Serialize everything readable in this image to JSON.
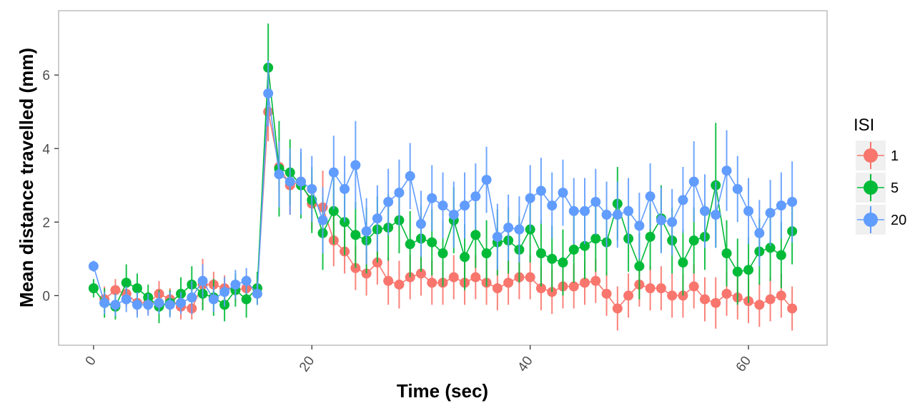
{
  "chart_data": {
    "type": "line",
    "xlabel": "Time (sec)",
    "ylabel": "Mean distance travelled (mm)",
    "xlim": [
      -3.2,
      67.2
    ],
    "ylim": [
      -1.35,
      7.75
    ],
    "x_ticks": [
      0,
      20,
      40,
      60
    ],
    "x_tick_labels": [
      "0",
      "20",
      "40",
      "60"
    ],
    "y_ticks": [
      0,
      2,
      4,
      6
    ],
    "y_tick_labels": [
      "0",
      "2",
      "4",
      "6"
    ],
    "grid": false,
    "legend": {
      "title": "ISI",
      "position": "right"
    },
    "x": [
      0,
      1,
      2,
      3,
      4,
      5,
      6,
      7,
      8,
      9,
      10,
      11,
      12,
      13,
      14,
      15,
      16,
      17,
      18,
      19,
      20,
      21,
      22,
      23,
      24,
      25,
      26,
      27,
      28,
      29,
      30,
      31,
      32,
      33,
      34,
      35,
      36,
      37,
      38,
      39,
      40,
      41,
      42,
      43,
      44,
      45,
      46,
      47,
      48,
      49,
      50,
      51,
      52,
      53,
      54,
      55,
      56,
      57,
      58,
      59,
      60,
      61,
      62,
      63,
      64
    ],
    "series": [
      {
        "name": "1",
        "color": "#F8766D",
        "start_x": 1,
        "values": [
          -0.3,
          -0.1,
          0.15,
          0.05,
          -0.2,
          -0.2,
          0.05,
          -0.1,
          -0.3,
          -0.35,
          0.3,
          0.3,
          0.2,
          0.15,
          0.2,
          0.2,
          5.0,
          3.5,
          3.0,
          3.1,
          2.5,
          2.4,
          1.5,
          1.2,
          0.75,
          0.6,
          0.9,
          0.4,
          0.3,
          0.5,
          0.6,
          0.35,
          0.35,
          0.5,
          0.35,
          0.5,
          0.35,
          0.2,
          0.35,
          0.5,
          0.5,
          0.2,
          0.1,
          0.25,
          0.25,
          0.35,
          0.4,
          0.05,
          -0.35,
          0.0,
          0.3,
          0.2,
          0.2,
          0.0,
          0.0,
          0.25,
          -0.1,
          -0.2,
          0.05,
          -0.05,
          -0.15,
          -0.25,
          -0.1,
          0.0,
          -0.35
        ],
        "errors": [
          0.3,
          0.35,
          0.3,
          0.35,
          0.3,
          0.3,
          0.35,
          0.3,
          0.35,
          0.3,
          0.7,
          0.35,
          0.35,
          0.3,
          0.35,
          0.3,
          0.8,
          0.7,
          0.8,
          0.7,
          0.7,
          1.0,
          0.7,
          0.6,
          0.6,
          0.6,
          0.6,
          0.65,
          0.65,
          0.6,
          0.6,
          0.6,
          0.6,
          0.6,
          0.6,
          0.6,
          0.6,
          0.6,
          0.6,
          0.6,
          0.6,
          0.6,
          0.6,
          0.6,
          0.6,
          0.6,
          0.6,
          0.6,
          0.6,
          0.6,
          0.6,
          0.6,
          0.6,
          0.6,
          0.6,
          0.6,
          0.6,
          0.7,
          0.6,
          0.6,
          0.6,
          0.6,
          0.6,
          0.6,
          0.6
        ]
      },
      {
        "name": "5",
        "color": "#00BA38",
        "start_x": 0,
        "values": [
          0.2,
          -0.2,
          -0.3,
          0.35,
          0.2,
          -0.05,
          -0.3,
          -0.2,
          0.05,
          0.3,
          0.05,
          -0.05,
          -0.25,
          0.15,
          -0.1,
          0.2,
          6.2,
          3.45,
          3.35,
          3.0,
          2.6,
          1.7,
          2.3,
          2.0,
          1.65,
          1.5,
          1.8,
          1.85,
          2.05,
          1.4,
          1.55,
          1.45,
          1.15,
          2.05,
          1.05,
          1.65,
          1.15,
          1.45,
          1.5,
          1.25,
          1.8,
          1.15,
          1.0,
          0.9,
          1.25,
          1.35,
          1.55,
          1.45,
          2.5,
          1.55,
          0.8,
          1.6,
          2.1,
          1.5,
          0.9,
          1.5,
          1.6,
          3.0,
          1.15,
          0.65,
          0.7,
          1.2,
          1.3,
          1.1,
          1.75
        ],
        "errors": [
          0.25,
          0.4,
          0.35,
          0.5,
          0.4,
          0.35,
          0.45,
          0.35,
          0.45,
          0.5,
          0.45,
          0.5,
          0.45,
          0.45,
          0.5,
          0.45,
          1.2,
          1.3,
          0.9,
          0.9,
          0.9,
          1.0,
          0.9,
          0.9,
          0.9,
          0.9,
          0.9,
          0.9,
          0.9,
          0.9,
          0.9,
          0.9,
          0.9,
          0.9,
          0.9,
          0.9,
          0.9,
          0.9,
          0.9,
          0.9,
          0.9,
          0.9,
          0.9,
          0.9,
          0.9,
          0.9,
          0.9,
          0.9,
          1.0,
          0.9,
          0.9,
          0.9,
          0.9,
          0.9,
          0.9,
          0.9,
          0.9,
          1.7,
          0.9,
          0.9,
          0.9,
          0.9,
          0.9,
          0.9,
          0.9
        ]
      },
      {
        "name": "20",
        "color": "#619CFF",
        "start_x": 0,
        "values": [
          0.8,
          -0.2,
          -0.25,
          -0.1,
          -0.25,
          -0.25,
          -0.2,
          -0.25,
          -0.2,
          -0.05,
          0.4,
          -0.1,
          0.1,
          0.3,
          0.4,
          0.05,
          5.5,
          3.3,
          3.1,
          3.1,
          2.9,
          2.05,
          3.35,
          2.9,
          3.55,
          1.75,
          2.1,
          2.55,
          2.8,
          3.25,
          1.95,
          2.65,
          2.45,
          2.2,
          2.45,
          2.7,
          3.15,
          1.6,
          1.85,
          1.8,
          2.65,
          2.85,
          2.45,
          2.8,
          2.3,
          2.3,
          2.55,
          2.2,
          2.2,
          2.3,
          1.9,
          2.7,
          2.05,
          2.0,
          2.6,
          3.1,
          2.3,
          2.2,
          3.4,
          2.9,
          2.3,
          1.7,
          2.25,
          2.45,
          2.55
        ],
        "errors": [
          0.15,
          0.3,
          0.3,
          0.35,
          0.35,
          0.3,
          0.3,
          0.35,
          0.3,
          0.45,
          0.45,
          0.35,
          0.4,
          0.4,
          0.35,
          0.3,
          0.9,
          0.9,
          0.9,
          0.9,
          0.9,
          0.9,
          1.0,
          0.9,
          1.2,
          0.9,
          0.9,
          0.9,
          0.9,
          0.9,
          0.9,
          0.9,
          0.9,
          0.9,
          0.9,
          0.9,
          0.9,
          0.9,
          0.9,
          0.9,
          0.9,
          0.9,
          0.9,
          0.9,
          0.9,
          0.9,
          0.9,
          0.9,
          0.9,
          0.9,
          0.9,
          0.9,
          0.9,
          0.9,
          0.9,
          1.1,
          1.0,
          0.9,
          1.1,
          0.9,
          0.9,
          0.9,
          0.9,
          0.9,
          1.1
        ]
      }
    ]
  }
}
